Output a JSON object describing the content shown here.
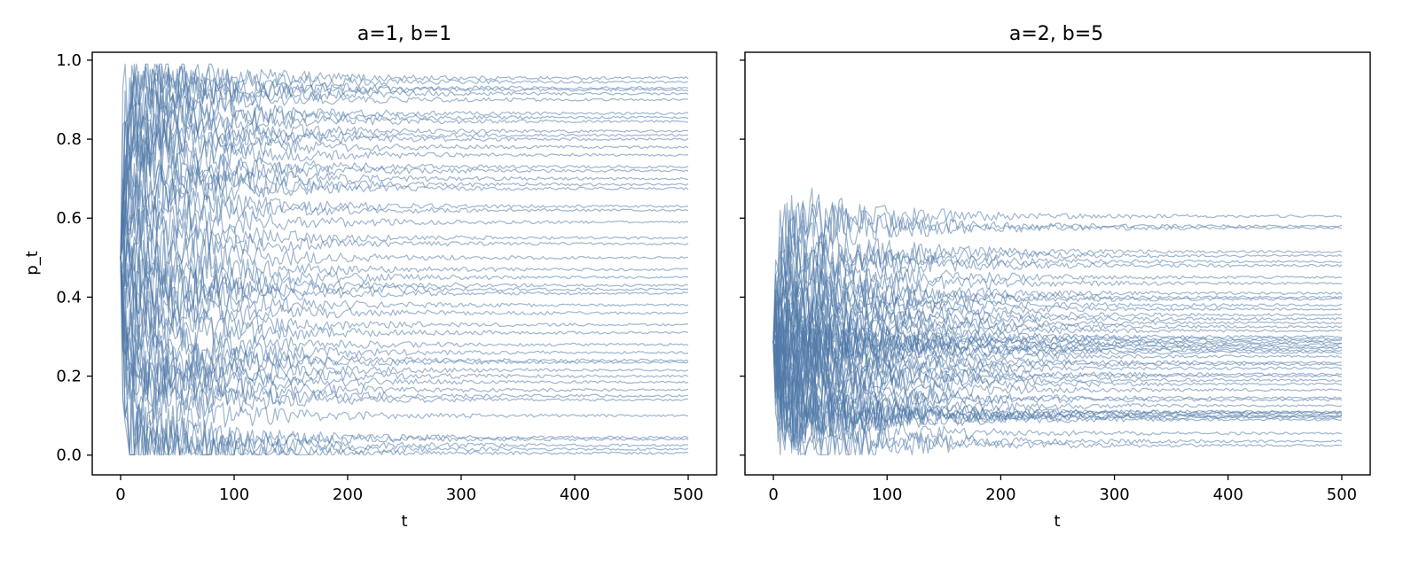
{
  "chart_data": [
    {
      "type": "line",
      "title": "a=1, b=1",
      "xlabel": "t",
      "ylabel": "p_t",
      "xlim": [
        -25,
        525
      ],
      "ylim": [
        -0.05,
        1.02
      ],
      "xticks": [
        0,
        100,
        200,
        300,
        400,
        500
      ],
      "xtick_labels": [
        "0",
        "100",
        "200",
        "300",
        "400",
        "500"
      ],
      "yticks": [
        0.0,
        0.2,
        0.4,
        0.6,
        0.8,
        1.0
      ],
      "ytick_labels": [
        "0.0",
        "0.2",
        "0.4",
        "0.6",
        "0.8",
        "1.0"
      ],
      "grid": false,
      "line_color": "#4f78a8",
      "n_paths": 50,
      "t_range": [
        0,
        500
      ],
      "start_value": 0.5,
      "final_values": [
        0.955,
        0.945,
        0.93,
        0.925,
        0.915,
        0.9,
        0.865,
        0.855,
        0.845,
        0.82,
        0.81,
        0.8,
        0.78,
        0.76,
        0.73,
        0.72,
        0.7,
        0.685,
        0.675,
        0.63,
        0.62,
        0.59,
        0.55,
        0.535,
        0.5,
        0.47,
        0.45,
        0.43,
        0.42,
        0.41,
        0.38,
        0.36,
        0.33,
        0.31,
        0.28,
        0.26,
        0.24,
        0.235,
        0.215,
        0.2,
        0.185,
        0.165,
        0.15,
        0.14,
        0.1,
        0.045,
        0.04,
        0.025,
        0.015,
        0.005
      ]
    },
    {
      "type": "line",
      "title": "a=2, b=5",
      "xlabel": "t",
      "ylabel": "",
      "xlim": [
        -25,
        525
      ],
      "ylim": [
        -0.05,
        1.02
      ],
      "xticks": [
        0,
        100,
        200,
        300,
        400,
        500
      ],
      "xtick_labels": [
        "0",
        "100",
        "200",
        "300",
        "400",
        "500"
      ],
      "yticks": [
        0.0,
        0.2,
        0.4,
        0.6,
        0.8,
        1.0
      ],
      "ytick_labels": [
        "",
        "",
        "",
        "",
        "",
        ""
      ],
      "grid": false,
      "line_color": "#4f78a8",
      "n_paths": 50,
      "t_range": [
        0,
        500
      ],
      "start_value": 0.2857,
      "final_values": [
        0.605,
        0.58,
        0.575,
        0.515,
        0.505,
        0.49,
        0.48,
        0.45,
        0.435,
        0.41,
        0.4,
        0.395,
        0.38,
        0.37,
        0.355,
        0.345,
        0.335,
        0.325,
        0.315,
        0.3,
        0.295,
        0.29,
        0.285,
        0.28,
        0.275,
        0.27,
        0.265,
        0.26,
        0.25,
        0.235,
        0.23,
        0.22,
        0.205,
        0.2,
        0.19,
        0.18,
        0.165,
        0.145,
        0.14,
        0.125,
        0.11,
        0.108,
        0.105,
        0.1,
        0.098,
        0.095,
        0.09,
        0.055,
        0.035,
        0.025
      ]
    }
  ]
}
